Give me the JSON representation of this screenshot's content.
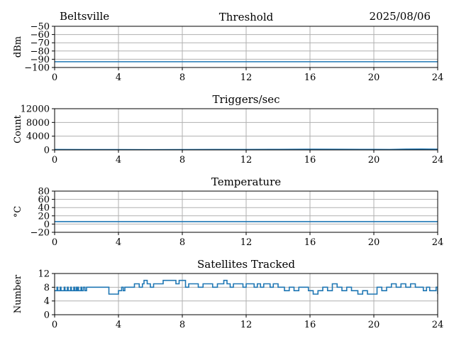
{
  "header": {
    "station": "Beltsville",
    "date": "2025/08/06"
  },
  "colors": {
    "line": "#1f77b4",
    "grid": "#b0b0b0",
    "axis": "#000000"
  },
  "chart_data": [
    {
      "type": "line",
      "title": "Threshold",
      "xlabel": "",
      "ylabel": "dBm",
      "xlim": [
        0,
        24
      ],
      "ylim": [
        -100,
        -50
      ],
      "xticks": [
        0,
        4,
        8,
        12,
        16,
        20,
        24
      ],
      "yticks": [
        -100,
        -90,
        -80,
        -70,
        -60,
        -50
      ],
      "ytick_labels": [
        "−100",
        "−90",
        "−80",
        "−70",
        "−60",
        "−50"
      ],
      "grid": true,
      "series": [
        {
          "x": [
            0,
            24
          ],
          "y": [
            -93,
            -93
          ]
        }
      ]
    },
    {
      "type": "line",
      "title": "Triggers/sec",
      "xlabel": "",
      "ylabel": "Count",
      "xlim": [
        0,
        24
      ],
      "ylim": [
        0,
        12000
      ],
      "xticks": [
        0,
        4,
        8,
        12,
        16,
        20,
        24
      ],
      "yticks": [
        0,
        4000,
        8000,
        12000
      ],
      "ytick_labels": [
        "0",
        "4000",
        "8000",
        "12000"
      ],
      "grid": true,
      "series": [
        {
          "x": [
            0,
            2,
            4,
            6,
            8,
            10,
            12,
            14,
            16,
            18,
            20,
            21,
            22,
            23,
            24
          ],
          "y": [
            120,
            90,
            80,
            70,
            90,
            110,
            130,
            150,
            200,
            160,
            150,
            130,
            220,
            250,
            210
          ]
        }
      ]
    },
    {
      "type": "line",
      "title": "Temperature",
      "xlabel": "",
      "ylabel": "°C",
      "xlim": [
        0,
        24
      ],
      "ylim": [
        -20,
        80
      ],
      "xticks": [
        0,
        4,
        8,
        12,
        16,
        20,
        24
      ],
      "yticks": [
        -20,
        0,
        20,
        40,
        60,
        80
      ],
      "ytick_labels": [
        "−20",
        "0",
        "20",
        "40",
        "60",
        "80"
      ],
      "grid": true,
      "series": [
        {
          "x": [
            0,
            24
          ],
          "y": [
            6,
            6
          ]
        }
      ]
    },
    {
      "type": "line",
      "title": "Satellites Tracked",
      "xlabel": "",
      "ylabel": "Number",
      "xlim": [
        0,
        24
      ],
      "ylim": [
        0,
        12
      ],
      "xticks": [
        0,
        4,
        8,
        12,
        16,
        20,
        24
      ],
      "yticks": [
        0,
        4,
        8,
        12
      ],
      "ytick_labels": [
        "0",
        "4",
        "8",
        "12"
      ],
      "grid": true,
      "series": [
        {
          "step": true,
          "x": [
            0,
            0.15,
            0.2,
            0.35,
            0.4,
            0.6,
            0.65,
            0.8,
            0.85,
            1.0,
            1.05,
            1.2,
            1.25,
            1.35,
            1.4,
            1.45,
            1.5,
            1.65,
            1.7,
            1.8,
            1.9,
            2.0,
            3.3,
            3.4,
            3.9,
            4.0,
            4.2,
            4.3,
            4.4,
            4.6,
            4.8,
            5.0,
            5.3,
            5.5,
            5.6,
            5.8,
            6.0,
            6.2,
            6.6,
            6.8,
            7.0,
            7.3,
            7.6,
            7.8,
            8.2,
            8.4,
            8.6,
            9.0,
            9.3,
            9.6,
            9.9,
            10.2,
            10.4,
            10.6,
            10.8,
            11.0,
            11.2,
            11.5,
            11.8,
            12.0,
            12.5,
            12.7,
            12.9,
            13.1,
            13.3,
            13.5,
            13.7,
            14.0,
            14.4,
            14.7,
            15.0,
            15.3,
            15.6,
            15.9,
            16.2,
            16.5,
            16.8,
            17.1,
            17.4,
            17.7,
            18.0,
            18.3,
            18.6,
            19.0,
            19.3,
            19.6,
            19.9,
            20.2,
            20.5,
            20.8,
            21.1,
            21.4,
            21.7,
            22.0,
            22.3,
            22.6,
            22.9,
            23.1,
            23.3,
            23.5,
            23.7,
            23.9,
            24.0
          ],
          "y": [
            7,
            8,
            7,
            8,
            7,
            8,
            7,
            8,
            7,
            8,
            7,
            8,
            7,
            8,
            7,
            8,
            7,
            8,
            7,
            8,
            7,
            8,
            8,
            6,
            6,
            7,
            8,
            7,
            8,
            8,
            8,
            9,
            8,
            9,
            10,
            9,
            8,
            9,
            9,
            10,
            10,
            10,
            9,
            10,
            8,
            9,
            9,
            8,
            9,
            9,
            8,
            9,
            9,
            10,
            9,
            8,
            9,
            9,
            8,
            9,
            8,
            9,
            8,
            9,
            9,
            8,
            9,
            8,
            7,
            8,
            7,
            8,
            8,
            7,
            6,
            7,
            8,
            7,
            9,
            8,
            7,
            8,
            7,
            6,
            7,
            6,
            6,
            8,
            7,
            8,
            9,
            8,
            9,
            8,
            9,
            8,
            8,
            7,
            8,
            7,
            7,
            8,
            6
          ]
        }
      ]
    }
  ]
}
